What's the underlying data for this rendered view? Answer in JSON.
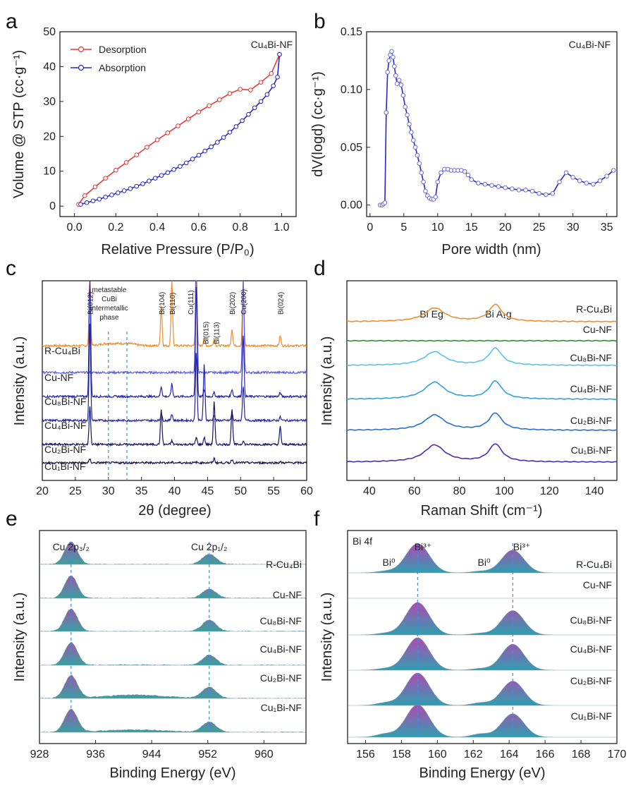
{
  "figure": {
    "colors": {
      "red": "#e53935",
      "blue": "#2727c8",
      "orange": "#f08c2a",
      "green": "#2e8b2e",
      "lightblue": "#57c3e6",
      "midblue": "#2f8fe0",
      "royal": "#2060d0",
      "indigo": "#4a2ab8",
      "dashed": "#3a8fe0",
      "fillTop": "#b04ab0",
      "fillBot": "#2f9fb0"
    }
  },
  "chart_data": [
    {
      "panel": "a",
      "type": "line",
      "annotation": "Cu₄Bi-NF",
      "xlabel": "Relative Pressure (P/P₀)",
      "ylabel": "Volume @ STP (cc·g⁻¹)",
      "xlim": [
        -0.07,
        1.07
      ],
      "ylim": [
        -3,
        50
      ],
      "xticks": [
        0.0,
        0.2,
        0.4,
        0.6,
        0.8,
        1.0
      ],
      "xtick_labels": [
        "0.0",
        "0.2",
        "0.4",
        "0.6",
        "0.8",
        "1.0"
      ],
      "yticks": [
        0,
        10,
        20,
        30,
        40,
        50
      ],
      "ytick_labels": [
        "0",
        "10",
        "20",
        "30",
        "40",
        "50"
      ],
      "legend": [
        "Desorption",
        "Absorption"
      ],
      "series": [
        {
          "name": "Desorption",
          "color": "#e53935",
          "x": [
            0.02,
            0.05,
            0.1,
            0.15,
            0.2,
            0.25,
            0.3,
            0.35,
            0.4,
            0.45,
            0.5,
            0.55,
            0.6,
            0.65,
            0.7,
            0.75,
            0.8,
            0.85,
            0.9,
            0.95,
            0.99
          ],
          "y": [
            0.5,
            3,
            5.5,
            8,
            10.3,
            12.5,
            14.7,
            16.9,
            19,
            21,
            23,
            25,
            27,
            28.8,
            30.5,
            32.3,
            33.5,
            33.3,
            35.5,
            38,
            43.5
          ]
        },
        {
          "name": "Absorption",
          "color": "#2727c8",
          "x": [
            0.03,
            0.06,
            0.09,
            0.12,
            0.15,
            0.18,
            0.21,
            0.24,
            0.27,
            0.3,
            0.33,
            0.36,
            0.39,
            0.42,
            0.45,
            0.48,
            0.51,
            0.54,
            0.57,
            0.6,
            0.63,
            0.66,
            0.69,
            0.72,
            0.75,
            0.78,
            0.81,
            0.84,
            0.87,
            0.9,
            0.93,
            0.96,
            0.98,
            0.99
          ],
          "y": [
            0.5,
            1,
            1.5,
            2,
            2.6,
            3.2,
            3.8,
            4.4,
            5,
            5.7,
            6.4,
            7.2,
            8,
            8.8,
            9.6,
            10.5,
            11.4,
            12.4,
            13.5,
            14.6,
            15.8,
            17,
            18.3,
            19.7,
            21.2,
            22.8,
            24.5,
            26.3,
            28.2,
            30,
            32,
            34.5,
            37,
            43.5
          ]
        }
      ]
    },
    {
      "panel": "b",
      "type": "line",
      "annotation": "Cu₄Bi-NF",
      "xlabel": "Pore width (nm)",
      "ylabel": "dV(logd) (cc·g⁻¹)",
      "xlim": [
        -0.5,
        36.5
      ],
      "ylim": [
        -0.01,
        0.15
      ],
      "xticks": [
        0,
        5,
        10,
        15,
        20,
        25,
        30,
        35
      ],
      "xtick_labels": [
        "0",
        "5",
        "10",
        "15",
        "20",
        "25",
        "30",
        "35"
      ],
      "yticks": [
        0.0,
        0.05,
        0.1,
        0.15
      ],
      "ytick_labels": [
        "0.00",
        "0.05",
        "0.10",
        "0.15"
      ],
      "series": [
        {
          "name": "pore size distribution",
          "color": "#2727c8",
          "x": [
            1.5,
            1.8,
            2.0,
            2.2,
            2.4,
            2.6,
            2.8,
            3.0,
            3.2,
            3.4,
            3.6,
            3.8,
            4.0,
            4.3,
            4.6,
            4.9,
            5.2,
            5.5,
            5.8,
            6.1,
            6.4,
            6.7,
            7.0,
            7.3,
            7.6,
            7.9,
            8.2,
            8.5,
            8.8,
            9.1,
            9.4,
            9.7,
            10.0,
            10.5,
            11.0,
            11.5,
            12.0,
            12.5,
            13.0,
            13.5,
            14.0,
            14.5,
            15.0,
            16.0,
            17.0,
            18.0,
            19.0,
            20.0,
            21.0,
            22.0,
            23.0,
            24.0,
            25.0,
            26.0,
            27.0,
            28.0,
            29.0,
            30.0,
            31.0,
            32.0,
            33.0,
            34.0,
            35.0,
            36.0
          ],
          "y": [
            0.0,
            0.0,
            0.001,
            0.002,
            0.08,
            0.115,
            0.125,
            0.13,
            0.133,
            0.128,
            0.12,
            0.112,
            0.105,
            0.108,
            0.104,
            0.095,
            0.085,
            0.078,
            0.07,
            0.063,
            0.056,
            0.05,
            0.043,
            0.036,
            0.028,
            0.02,
            0.012,
            0.008,
            0.006,
            0.005,
            0.005,
            0.007,
            0.02,
            0.028,
            0.031,
            0.031,
            0.03,
            0.03,
            0.03,
            0.03,
            0.029,
            0.026,
            0.022,
            0.019,
            0.018,
            0.017,
            0.016,
            0.015,
            0.014,
            0.013,
            0.013,
            0.012,
            0.01,
            0.009,
            0.01,
            0.02,
            0.028,
            0.024,
            0.021,
            0.019,
            0.018,
            0.021,
            0.025,
            0.03
          ]
        }
      ]
    },
    {
      "panel": "c",
      "type": "line",
      "xlabel": "2θ (degree)",
      "ylabel": "Intensity (a.u.)",
      "xlim": [
        20,
        60
      ],
      "xticks": [
        20,
        25,
        30,
        35,
        40,
        45,
        50,
        55,
        60
      ],
      "xtick_labels": [
        "20",
        "25",
        "30",
        "35",
        "40",
        "45",
        "50",
        "55",
        "60"
      ],
      "peaks": [
        27.2,
        38.0,
        39.6,
        43.3,
        44.5,
        46.0,
        48.7,
        50.4,
        56.0
      ],
      "peak_labels": [
        {
          "x": 27.2,
          "text": "Bi(012)"
        },
        {
          "x": 38.0,
          "text": "Bi(104)"
        },
        {
          "x": 39.6,
          "text": "Bi(110)"
        },
        {
          "x": 42.4,
          "text": "Cu(111)"
        },
        {
          "x": 44.7,
          "text": "Bi(015)"
        },
        {
          "x": 46.3,
          "text": "Bi(113)"
        },
        {
          "x": 48.7,
          "text": "Bi(202)"
        },
        {
          "x": 50.4,
          "text": "Cu(200)"
        },
        {
          "x": 56.0,
          "text": "Bi(024)"
        }
      ],
      "phase_note": [
        "metastable",
        "CuBi",
        "intermetallic",
        "phase"
      ],
      "dashed_lines": [
        30.0,
        32.8
      ],
      "series": [
        {
          "name": "R-Cu₄Bi",
          "color": "#f08c2a",
          "heights": [
            1.0,
            0.6,
            1.0,
            1.0,
            0.12,
            0.1,
            0.25,
            1.0,
            0.15
          ]
        },
        {
          "name": "Cu-NF",
          "color": "#5b5be8",
          "heights": [
            0,
            0,
            0,
            1.0,
            0,
            0,
            0,
            0.7,
            0
          ]
        },
        {
          "name": "Cu₈Bi-NF",
          "color": "#2323b0",
          "heights": [
            1.0,
            0.08,
            0.1,
            0.9,
            0.05,
            0.03,
            0.06,
            0.5,
            0.03
          ]
        },
        {
          "name": "Cu₄Bi-NF",
          "color": "#23239c",
          "heights": [
            0.85,
            0.06,
            0.06,
            0.6,
            0.5,
            0.05,
            0.06,
            0.3,
            0.03
          ]
        },
        {
          "name": "Cu₂Bi-NF",
          "color": "#141460",
          "heights": [
            0.55,
            0.5,
            0.05,
            0.1,
            0.1,
            0.6,
            0.5,
            0.05,
            0.25
          ]
        },
        {
          "name": "Cu₁Bi-NF",
          "color": "#141450",
          "heights": [
            0.2,
            0.05,
            0.02,
            0.03,
            0.02,
            0.25,
            0.2,
            0.02,
            0.05
          ]
        }
      ]
    },
    {
      "panel": "d",
      "type": "line",
      "xlabel": "Raman Shift (cm⁻¹)",
      "ylabel": "Intensity (a.u.)",
      "xlim": [
        30,
        150
      ],
      "xticks": [
        40,
        60,
        80,
        100,
        120,
        140
      ],
      "xtick_labels": [
        "40",
        "60",
        "80",
        "100",
        "120",
        "140"
      ],
      "peak_names": [
        "Bi Eg",
        "Bi A₁g"
      ],
      "peak_positions": [
        69,
        96
      ],
      "series": [
        {
          "name": "R-Cu₄Bi",
          "color": "#f08c2a",
          "heights": [
            0.8,
            1.0
          ]
        },
        {
          "name": "Cu-NF",
          "color": "#2e8b2e",
          "heights": [
            0,
            0
          ]
        },
        {
          "name": "Cu₈Bi-NF",
          "color": "#57c3e6",
          "heights": [
            0.8,
            1.0
          ]
        },
        {
          "name": "Cu₄Bi-NF",
          "color": "#2f9fe0",
          "heights": [
            1.0,
            1.05
          ]
        },
        {
          "name": "Cu₂Bi-NF",
          "color": "#2070d8",
          "heights": [
            0.9,
            1.0
          ]
        },
        {
          "name": "Cu₁Bi-NF",
          "color": "#4a2ab8",
          "heights": [
            1.0,
            1.05
          ]
        }
      ]
    },
    {
      "panel": "e",
      "type": "area",
      "xlabel": "Binding Energy (eV)",
      "ylabel": "Intensity (a.u.)",
      "xlim": [
        928,
        966
      ],
      "xticks": [
        928,
        936,
        944,
        952,
        960
      ],
      "xtick_labels": [
        "928",
        "936",
        "944",
        "952",
        "960"
      ],
      "peak_labels": [
        {
          "x": 932.5,
          "text": "Cu 2p₃/₂"
        },
        {
          "x": 952.2,
          "text": "Cu 2p₁/₂"
        }
      ],
      "dashed_lines": [
        932.5,
        952.2
      ],
      "series": [
        {
          "name": "R-Cu₄Bi",
          "heights": [
            1.0,
            0.45
          ],
          "satellite": 0.0
        },
        {
          "name": "Cu-NF",
          "heights": [
            1.0,
            0.4
          ],
          "satellite": 0.0
        },
        {
          "name": "Cu₈Bi-NF",
          "heights": [
            1.0,
            0.5
          ],
          "satellite": 0.0
        },
        {
          "name": "Cu₄Bi-NF",
          "heights": [
            1.0,
            0.45
          ],
          "satellite": 0.05
        },
        {
          "name": "Cu₂Bi-NF",
          "heights": [
            1.0,
            0.5
          ],
          "satellite": 0.35
        },
        {
          "name": "Cu₁Bi-NF",
          "heights": [
            1.0,
            0.45
          ],
          "satellite": 0.25
        }
      ]
    },
    {
      "panel": "f",
      "type": "area",
      "xlabel": "Binding Energy (eV)",
      "ylabel": "Intensity (a.u.)",
      "xlim": [
        155,
        170
      ],
      "xticks": [
        156,
        158,
        160,
        162,
        164,
        166,
        168,
        170
      ],
      "xtick_labels": [
        "156",
        "158",
        "160",
        "162",
        "164",
        "166",
        "168",
        "170"
      ],
      "corner_label": "Bi 4f",
      "peak_labels": [
        {
          "x": 157.3,
          "text": "Bi⁰"
        },
        {
          "x": 159.2,
          "text": "Bi³⁺"
        },
        {
          "x": 162.6,
          "text": "Bi⁰"
        },
        {
          "x": 164.7,
          "text": "Bi³⁺"
        }
      ],
      "dashed_lines": [
        158.9,
        164.2
      ],
      "series": [
        {
          "name": "R-Cu₄Bi",
          "heights": [
            0.9,
            0.7
          ],
          "metal": 0.05
        },
        {
          "name": "Cu-NF",
          "heights": [
            0,
            0
          ],
          "metal": 0
        },
        {
          "name": "Cu₈Bi-NF",
          "heights": [
            1.0,
            0.75
          ],
          "metal": 0.05
        },
        {
          "name": "Cu₄Bi-NF",
          "heights": [
            1.0,
            0.8
          ],
          "metal": 0.05
        },
        {
          "name": "Cu₂Bi-NF",
          "heights": [
            1.0,
            0.75
          ],
          "metal": 0.08
        },
        {
          "name": "Cu₁Bi-NF",
          "heights": [
            1.0,
            0.72
          ],
          "metal": 0.1
        }
      ]
    }
  ]
}
